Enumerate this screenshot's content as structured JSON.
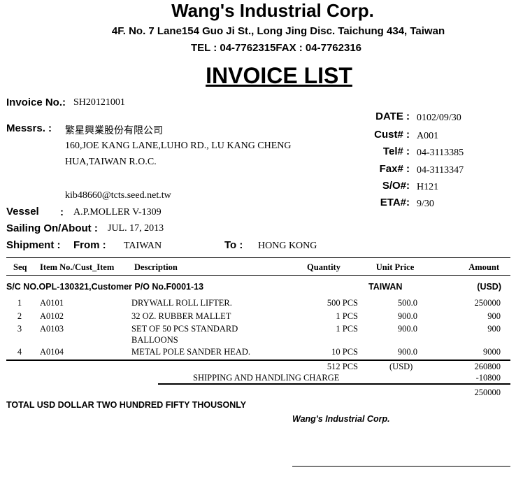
{
  "company": {
    "name": "Wang's Industrial Corp.",
    "address": "4F. No. 7 Lane154 Guo Ji St., Long Jing Disc. Taichung 434, Taiwan",
    "tel_fax": "TEL : 04-7762315FAX : 04-7762316"
  },
  "title": "INVOICE LIST",
  "left": {
    "invoice_label": "Invoice No.:",
    "invoice_no": "SH20121001",
    "messrs_label": "Messrs. :",
    "messrs_name": "繁星興業股份有限公司",
    "address_line1": "160,JOE KANG LANE,LUHO RD., LU KANG CHENG",
    "address_line2": "HUA,TAIWAN R.O.C.",
    "email": "kib48660@tcts.seed.net.tw",
    "vessel_label": "Vessel",
    "vessel_colon": ":",
    "vessel": "A.P.MOLLER V-1309",
    "sailing_label": "Sailing On/About :",
    "sailing": "JUL. 17, 2013",
    "shipment_label": "Shipment :",
    "from_label": "From  :",
    "from": "TAIWAN",
    "to_label": "To :",
    "to": "HONG KONG"
  },
  "right": [
    {
      "label": "DATE :",
      "value": "0102/09/30"
    },
    {
      "label": "Cust# :",
      "value": "A001"
    },
    {
      "label": "Tel# :",
      "value": "04-3113385"
    },
    {
      "label": "Fax# :",
      "value": "04-3113347"
    },
    {
      "label": "S/O#:",
      "value": "H121"
    },
    {
      "label": "ETA#:",
      "value": "9/30"
    }
  ],
  "table": {
    "headers": {
      "seq": "Seq",
      "item": "Item No./Cust_Item",
      "desc": "Description",
      "qty": "Quantity",
      "price": "Unit Price",
      "amount": "Amount"
    },
    "group": {
      "label": "S/C NO.OPL-130321,Customer P/O No.F0001-13",
      "origin": "TAIWAN",
      "currency": "(USD)"
    },
    "rows": [
      {
        "seq": "1",
        "item": "A0101",
        "desc": "DRYWALL ROLL LIFTER.",
        "desc2": "",
        "qty": "500 PCS",
        "price": "500.0",
        "amount": "250000"
      },
      {
        "seq": "2",
        "item": "A0102",
        "desc": "32 OZ. RUBBER MALLET",
        "desc2": "",
        "qty": "1 PCS",
        "price": "900.0",
        "amount": "900"
      },
      {
        "seq": "3",
        "item": "A0103",
        "desc": "SET OF 50 PCS STANDARD",
        "desc2": "BALLOONS",
        "qty": "1 PCS",
        "price": "900.0",
        "amount": "900"
      },
      {
        "seq": "4",
        "item": "A0104",
        "desc": "METAL POLE SANDER HEAD.",
        "desc2": "",
        "qty": "10 PCS",
        "price": "900.0",
        "amount": "9000"
      }
    ],
    "subtotal": {
      "qty": "512 PCS",
      "currency": "(USD)",
      "amount": "260800"
    },
    "shipping": {
      "label": "SHIPPING AND HANDLING CHARGE",
      "amount": "-10800"
    },
    "total": "250000"
  },
  "total_words": "TOTAL USD DOLLAR TWO HUNDRED FIFTY THOUSONLY",
  "signature": "Wang's Industrial Corp."
}
